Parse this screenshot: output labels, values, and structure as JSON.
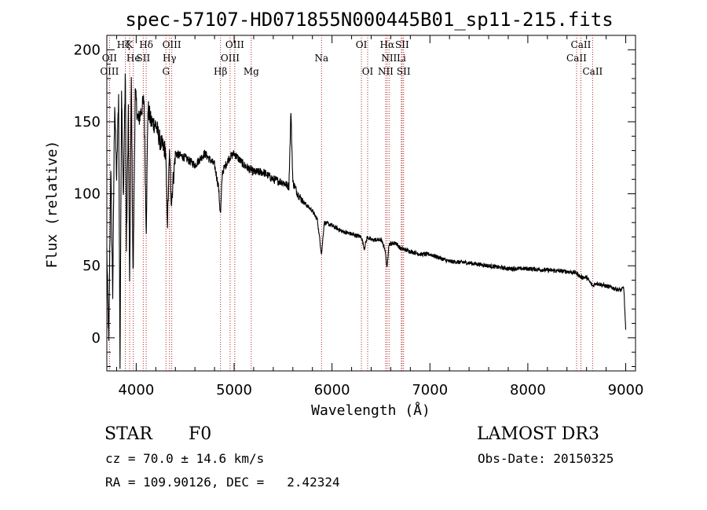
{
  "chart_data": {
    "type": "line",
    "title": "spec-57107-HD071855N000445B01_sp11-215.fits",
    "xlabel": "Wavelength (Å)",
    "ylabel": "Flux (relative)",
    "xlim": [
      3700,
      9100
    ],
    "ylim": [
      -23,
      210
    ],
    "x_ticks": [
      4000,
      5000,
      6000,
      7000,
      8000,
      9000
    ],
    "y_ticks": [
      0,
      50,
      100,
      150,
      200
    ],
    "series": [
      {
        "name": "flux",
        "color": "#000000",
        "x": [
          3700,
          3720,
          3740,
          3760,
          3780,
          3800,
          3820,
          3835,
          3850,
          3870,
          3889,
          3900,
          3920,
          3933,
          3950,
          3968,
          3990,
          4020,
          4060,
          4080,
          4102,
          4120,
          4150,
          4200,
          4250,
          4300,
          4320,
          4340,
          4360,
          4400,
          4500,
          4600,
          4700,
          4800,
          4840,
          4861,
          4880,
          4950,
          5000,
          5100,
          5200,
          5300,
          5400,
          5500,
          5560,
          5580,
          5600,
          5650,
          5700,
          5800,
          5850,
          5893,
          5920,
          6000,
          6100,
          6200,
          6300,
          6330,
          6360,
          6400,
          6500,
          6540,
          6563,
          6580,
          6650,
          6700,
          6800,
          6900,
          7000,
          7200,
          7400,
          7600,
          7800,
          8000,
          8200,
          8400,
          8498,
          8542,
          8600,
          8662,
          8700,
          8800,
          8900,
          8950,
          8980,
          9000
        ],
        "y": [
          60,
          -5,
          120,
          30,
          165,
          110,
          168,
          -20,
          175,
          95,
          190,
          60,
          160,
          30,
          180,
          40,
          170,
          150,
          160,
          165,
          75,
          160,
          150,
          148,
          135,
          130,
          80,
          128,
          95,
          128,
          125,
          120,
          128,
          120,
          105,
          85,
          115,
          125,
          128,
          120,
          115,
          115,
          110,
          108,
          105,
          158,
          108,
          100,
          95,
          88,
          82,
          58,
          80,
          78,
          74,
          72,
          70,
          62,
          70,
          68,
          68,
          62,
          48,
          65,
          66,
          62,
          60,
          58,
          58,
          53,
          52,
          50,
          48,
          48,
          47,
          46,
          45,
          42,
          42,
          36,
          38,
          36,
          34,
          33,
          35,
          5
        ]
      }
    ],
    "lines": [
      {
        "name": "Hζ",
        "x": 3889
      },
      {
        "name": "K",
        "x": 3933
      },
      {
        "name": "He",
        "x": 3970
      },
      {
        "name": "Hδ",
        "x": 4102
      },
      {
        "name": "SII",
        "x": 4072
      },
      {
        "name": "OII",
        "x": 3727
      },
      {
        "name": "OIII",
        "x": 4363
      },
      {
        "name": "Hγ",
        "x": 4340
      },
      {
        "name": "G",
        "x": 4304
      },
      {
        "name": "Hβ",
        "x": 4861
      },
      {
        "name": "OIII",
        "x": 4959
      },
      {
        "name": "OIII",
        "x": 5007
      },
      {
        "name": "Mg",
        "x": 5175
      },
      {
        "name": "Na",
        "x": 5893
      },
      {
        "name": "OI",
        "x": 6300
      },
      {
        "name": "OI",
        "x": 6364
      },
      {
        "name": "Hα",
        "x": 6563
      },
      {
        "name": "NII",
        "x": 6548
      },
      {
        "name": "NII",
        "x": 6583
      },
      {
        "name": "SII",
        "x": 6716
      },
      {
        "name": "SII",
        "x": 6731
      },
      {
        "name": "Li",
        "x": 6708
      },
      {
        "name": "CaII",
        "x": 8498
      },
      {
        "name": "CaII",
        "x": 8542
      },
      {
        "name": "CaII",
        "x": 8662
      }
    ],
    "line_labels_row1": [
      {
        "text": "Hζ",
        "x": 3870
      },
      {
        "text": "K",
        "x": 3933
      },
      {
        "text": "Hδ",
        "x": 4102
      },
      {
        "text": "OIII",
        "x": 4363
      },
      {
        "text": "OIII",
        "x": 5007
      },
      {
        "text": "OI",
        "x": 6300
      },
      {
        "text": "Hα",
        "x": 6563
      },
      {
        "text": "SII",
        "x": 6716
      },
      {
        "text": "CaII",
        "x": 8542
      }
    ],
    "line_labels_row2": [
      {
        "text": "OII",
        "x": 3727
      },
      {
        "text": "He",
        "x": 3970
      },
      {
        "text": "SII",
        "x": 4072
      },
      {
        "text": "Hγ",
        "x": 4340
      },
      {
        "text": "OIII",
        "x": 4959
      },
      {
        "text": "Na",
        "x": 5893
      },
      {
        "text": "NII",
        "x": 6583
      },
      {
        "text": "Li",
        "x": 6708
      },
      {
        "text": "CaII",
        "x": 8498
      }
    ],
    "line_labels_row3": [
      {
        "text": "OIII",
        "x": 3727
      },
      {
        "text": "G",
        "x": 4304
      },
      {
        "text": "Hβ",
        "x": 4861
      },
      {
        "text": "Mg",
        "x": 5175
      },
      {
        "text": "OI",
        "x": 6364
      },
      {
        "text": "NII",
        "x": 6548
      },
      {
        "text": "SII",
        "x": 6731
      },
      {
        "text": "CaII",
        "x": 8662
      }
    ]
  },
  "info": {
    "class": "STAR",
    "subclass": "F0",
    "survey": "LAMOST DR3",
    "cz": "cz = 70.0 ± 14.6 km/s",
    "obs_date": "Obs-Date: 20150325",
    "radec": "RA = 109.90126, DEC =   2.42324"
  }
}
